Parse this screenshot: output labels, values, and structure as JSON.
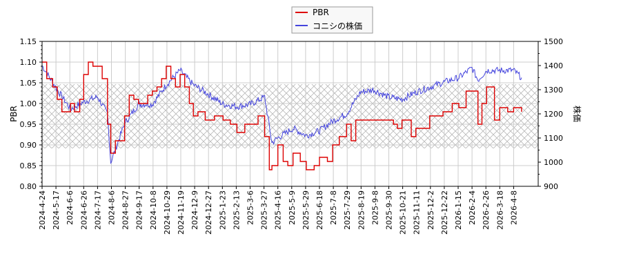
{
  "chart_data": {
    "type": "line",
    "title": "",
    "legend": {
      "position": "upper center",
      "entries": [
        {
          "label": "PBR",
          "color": "#dd0000"
        },
        {
          "label": "コニシの株価",
          "color": "#4444dd"
        }
      ]
    },
    "xlabel": "",
    "ylabel_left": "PBR",
    "ylabel_right": "株価",
    "ylim_left": [
      0.8,
      1.15
    ],
    "ylim_right": [
      900,
      1500
    ],
    "yticks_left": [
      "0.80",
      "0.85",
      "0.90",
      "0.95",
      "1.00",
      "1.05",
      "1.10",
      "1.15"
    ],
    "yticks_right": [
      "900",
      "1000",
      "1100",
      "1200",
      "1300",
      "1400",
      "1500"
    ],
    "xticks": [
      "2024-4-24",
      "2024-5-17",
      "2024-6-6",
      "2024-6-26",
      "2024-7-17",
      "2024-8-6",
      "2024-8-27",
      "2024-9-17",
      "2024-10-8",
      "2024-10-29",
      "2024-11-19",
      "2024-12-9",
      "2024-12-27",
      "2025-1-23",
      "2025-2-13",
      "2025-3-6",
      "2025-3-27",
      "2025-4-16",
      "2025-5-9",
      "2025-5-29",
      "2025-6-18",
      "2025-7-8",
      "2025-7-29",
      "2025-8-19",
      "2025-9-8",
      "2025-9-30",
      "2025-10-21",
      "2025-11-11",
      "2025-12-2",
      "2025-12-22",
      "2026-1-15",
      "2026-2-4",
      "2026-2-26",
      "2026-3-18",
      "2026-4-8"
    ],
    "grid": true,
    "shaded_band": {
      "pbr_range": [
        0.892,
        1.047
      ],
      "pattern": "crosshatch",
      "color": "#bbbbbb"
    },
    "series": [
      {
        "name": "PBR",
        "axis": "left",
        "color": "#dd0000",
        "x": [
          "2024-4-24",
          "2024-5-1",
          "2024-5-10",
          "2024-5-17",
          "2024-5-24",
          "2024-6-6",
          "2024-6-12",
          "2024-6-20",
          "2024-6-26",
          "2024-7-3",
          "2024-7-10",
          "2024-7-17",
          "2024-7-24",
          "2024-8-1",
          "2024-8-6",
          "2024-8-13",
          "2024-8-20",
          "2024-8-27",
          "2024-9-3",
          "2024-9-10",
          "2024-9-17",
          "2024-9-24",
          "2024-10-1",
          "2024-10-8",
          "2024-10-15",
          "2024-10-22",
          "2024-10-29",
          "2024-11-5",
          "2024-11-12",
          "2024-11-19",
          "2024-11-26",
          "2024-12-3",
          "2024-12-9",
          "2024-12-16",
          "2024-12-27",
          "2025-1-10",
          "2025-1-23",
          "2025-2-3",
          "2025-2-13",
          "2025-2-25",
          "2025-3-6",
          "2025-3-17",
          "2025-3-27",
          "2025-4-3",
          "2025-4-7",
          "2025-4-16",
          "2025-4-24",
          "2025-5-1",
          "2025-5-9",
          "2025-5-20",
          "2025-5-29",
          "2025-6-10",
          "2025-6-18",
          "2025-6-30",
          "2025-7-8",
          "2025-7-18",
          "2025-7-29",
          "2025-8-5",
          "2025-8-12",
          "2025-8-19",
          "2025-9-8",
          "2025-9-30",
          "2025-10-8",
          "2025-10-14",
          "2025-10-21",
          "2025-11-4",
          "2025-11-11",
          "2025-11-25",
          "2025-12-2",
          "2025-12-22",
          "2026-1-5",
          "2026-1-15",
          "2026-1-26",
          "2026-2-4",
          "2026-2-13",
          "2026-2-19",
          "2026-2-26",
          "2026-3-10",
          "2026-3-18",
          "2026-3-30",
          "2026-4-8",
          "2026-4-20"
        ],
        "values": [
          1.1,
          1.06,
          1.04,
          1.01,
          0.98,
          1.0,
          0.98,
          1.01,
          1.07,
          1.1,
          1.09,
          1.09,
          1.06,
          0.95,
          0.88,
          0.91,
          0.91,
          0.97,
          1.02,
          1.01,
          1.0,
          1.0,
          1.02,
          1.03,
          1.04,
          1.06,
          1.09,
          1.06,
          1.04,
          1.07,
          1.04,
          1.0,
          0.97,
          0.98,
          0.96,
          0.97,
          0.96,
          0.95,
          0.93,
          0.95,
          0.95,
          0.97,
          0.92,
          0.84,
          0.85,
          0.9,
          0.86,
          0.85,
          0.88,
          0.86,
          0.84,
          0.85,
          0.87,
          0.86,
          0.9,
          0.92,
          0.95,
          0.91,
          0.96,
          0.96,
          0.96,
          0.96,
          0.95,
          0.94,
          0.96,
          0.92,
          0.94,
          0.94,
          0.97,
          0.98,
          1.0,
          0.99,
          1.03,
          1.03,
          0.95,
          1.0,
          1.04,
          0.96,
          0.99,
          0.98,
          0.99,
          0.98
        ]
      },
      {
        "name": "コニシの株価",
        "axis": "right",
        "color": "#4444dd",
        "x": [
          "2024-4-24",
          "2024-5-17",
          "2024-6-6",
          "2024-6-26",
          "2024-7-17",
          "2024-8-1",
          "2024-8-6",
          "2024-8-27",
          "2024-9-17",
          "2024-10-8",
          "2024-10-29",
          "2024-11-19",
          "2024-12-9",
          "2024-12-27",
          "2025-1-23",
          "2025-2-13",
          "2025-3-6",
          "2025-3-27",
          "2025-4-7",
          "2025-4-16",
          "2025-5-9",
          "2025-5-29",
          "2025-6-18",
          "2025-7-8",
          "2025-7-29",
          "2025-8-19",
          "2025-9-8",
          "2025-9-30",
          "2025-10-21",
          "2025-11-11",
          "2025-12-2",
          "2025-12-22",
          "2026-1-15",
          "2026-2-4",
          "2026-2-13",
          "2026-2-26",
          "2026-3-18",
          "2026-4-8",
          "2026-4-20"
        ],
        "values": [
          1400,
          1300,
          1220,
          1250,
          1270,
          1200,
          1000,
          1160,
          1240,
          1240,
          1320,
          1380,
          1320,
          1290,
          1240,
          1230,
          1240,
          1270,
          1080,
          1100,
          1140,
          1110,
          1130,
          1170,
          1200,
          1290,
          1300,
          1270,
          1260,
          1290,
          1310,
          1330,
          1350,
          1390,
          1340,
          1380,
          1380,
          1380,
          1350
        ]
      }
    ]
  }
}
